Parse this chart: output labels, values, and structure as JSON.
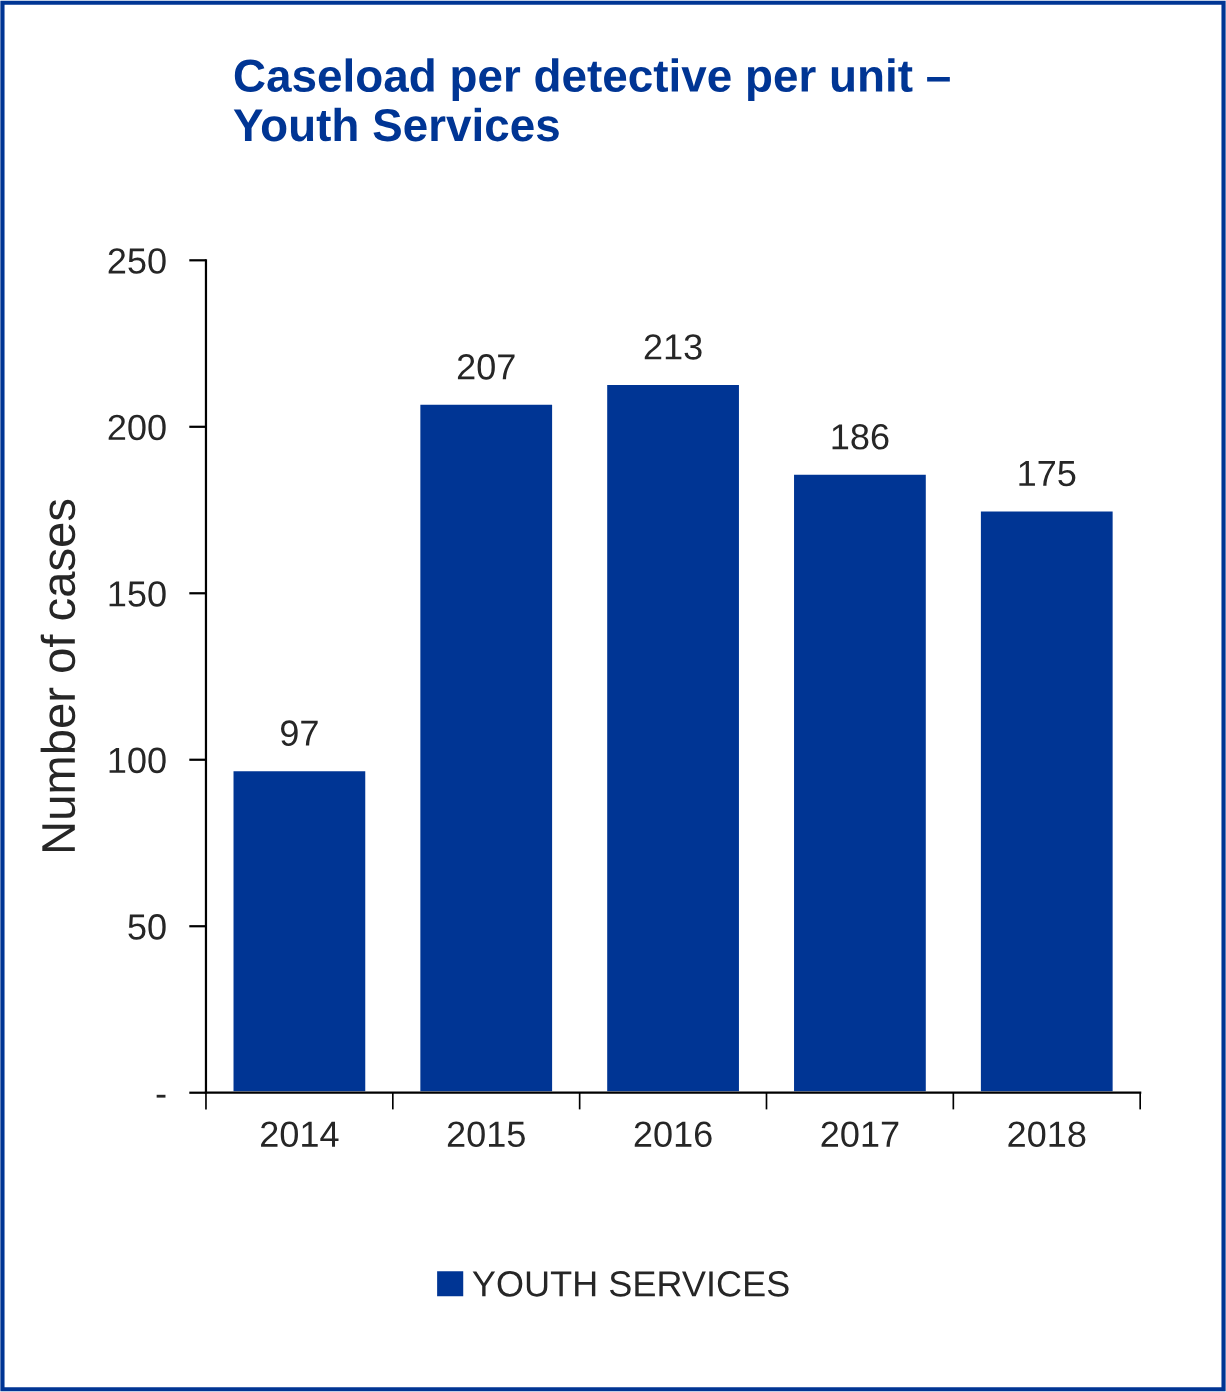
{
  "chart_data": {
    "type": "bar",
    "title": "Caseload per detective per unit –\nYouth Services",
    "ylabel": "Number of cases",
    "categories": [
      "2014",
      "2015",
      "2016",
      "2017",
      "2018"
    ],
    "series": [
      {
        "name": "YOUTH SERVICES",
        "color": "#003594",
        "values": [
          97,
          207,
          213,
          186,
          175
        ]
      }
    ],
    "ylim": [
      0,
      250
    ],
    "yticks": [
      {
        "value": 0,
        "label": "-"
      },
      50,
      100,
      150,
      200,
      250
    ],
    "data_labels": true,
    "grid": false,
    "legend": "bottom"
  }
}
